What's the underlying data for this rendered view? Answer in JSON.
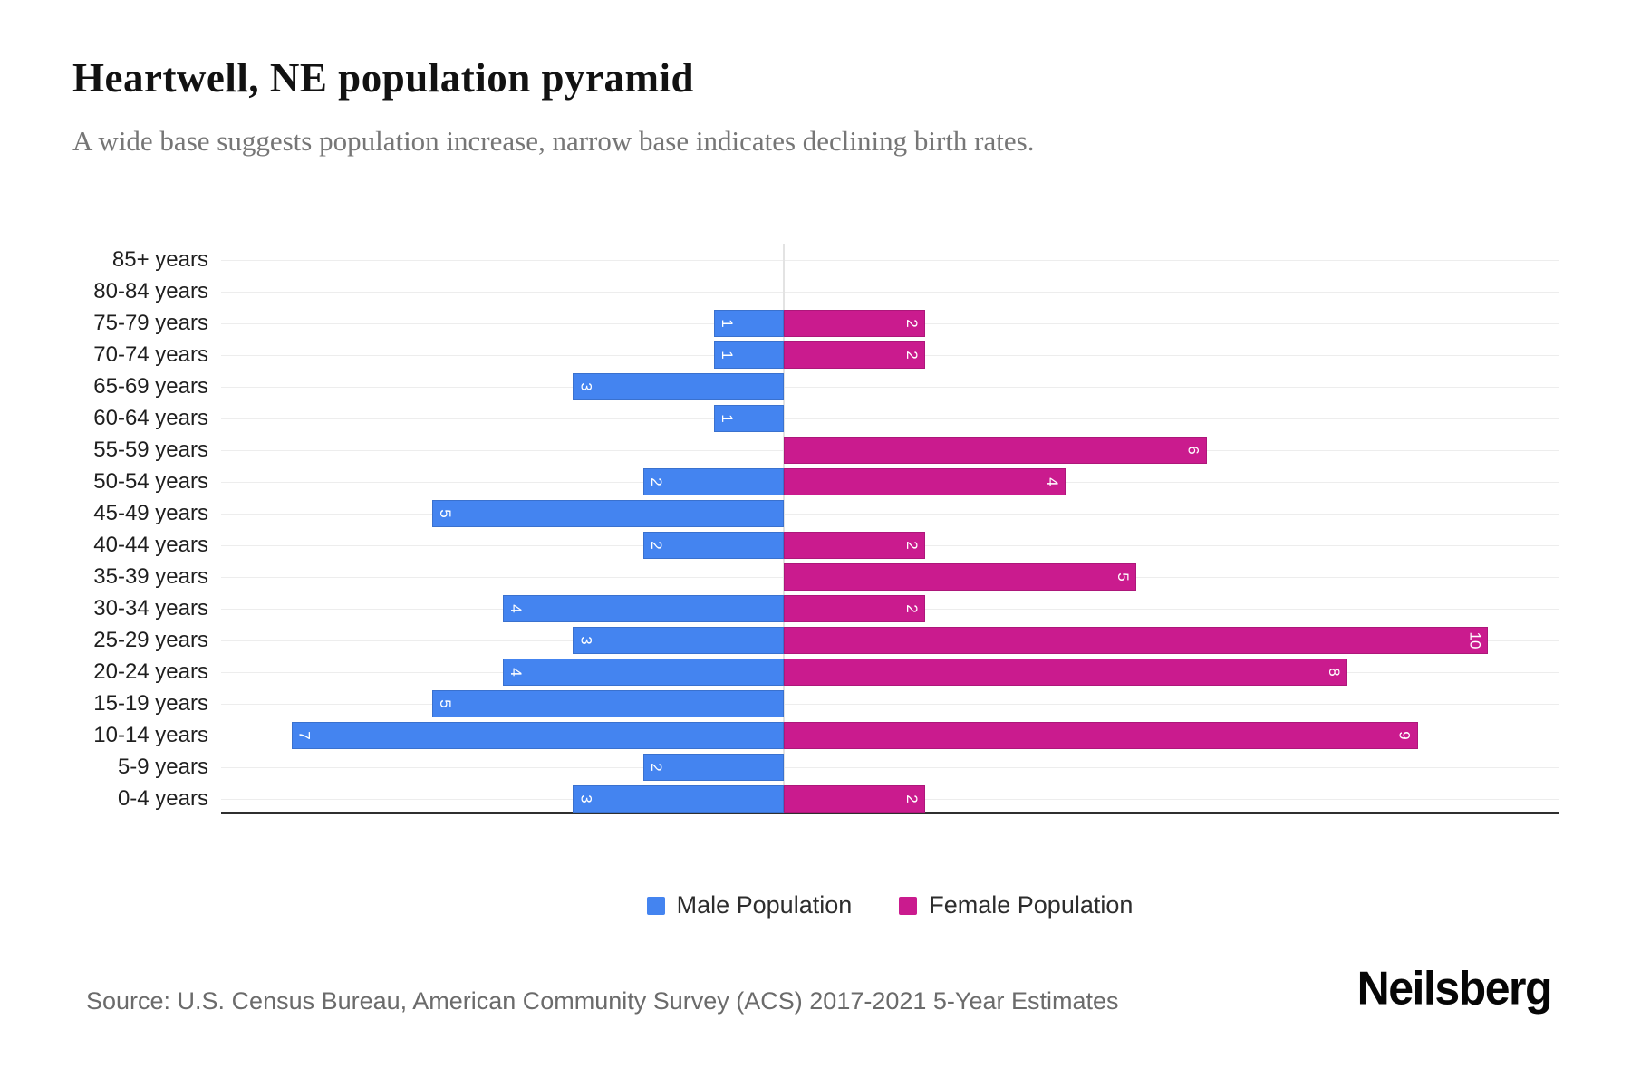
{
  "header": {
    "title": "Heartwell, NE population pyramid",
    "subtitle": "A wide base suggests population increase, narrow base indicates declining birth rates."
  },
  "chart_data": {
    "type": "bar",
    "variant": "population-pyramid",
    "orientation": "horizontal",
    "categories": [
      "85+ years",
      "80-84 years",
      "75-79 years",
      "70-74 years",
      "65-69 years",
      "60-64 years",
      "55-59 years",
      "50-54 years",
      "45-49 years",
      "40-44 years",
      "35-39 years",
      "30-34 years",
      "25-29 years",
      "20-24 years",
      "15-19 years",
      "10-14 years",
      "5-9 years",
      "0-4 years"
    ],
    "series": [
      {
        "name": "Male Population",
        "side": "left",
        "color": "#4484F0",
        "values": [
          0,
          0,
          1,
          1,
          3,
          1,
          0,
          2,
          5,
          2,
          0,
          4,
          3,
          4,
          5,
          7,
          2,
          3
        ]
      },
      {
        "name": "Female Population",
        "side": "right",
        "color": "#CA1B8E",
        "values": [
          0,
          0,
          2,
          2,
          0,
          0,
          6,
          4,
          0,
          2,
          5,
          2,
          10,
          8,
          0,
          9,
          0,
          2
        ]
      }
    ],
    "axis": {
      "left_units": 8,
      "right_units": 11
    },
    "grid": true,
    "gridline_color": "#ededed",
    "zero_line_color": "#e3e3e3",
    "baseline_color": "#2f2f2f",
    "value_labels": "inside bar outer end, rotated 90deg, white",
    "legend_position": "bottom-center"
  },
  "footer": {
    "source": "Source: U.S. Census Bureau, American Community Survey (ACS) 2017-2021 5-Year Estimates",
    "brand": "Neilsberg"
  }
}
